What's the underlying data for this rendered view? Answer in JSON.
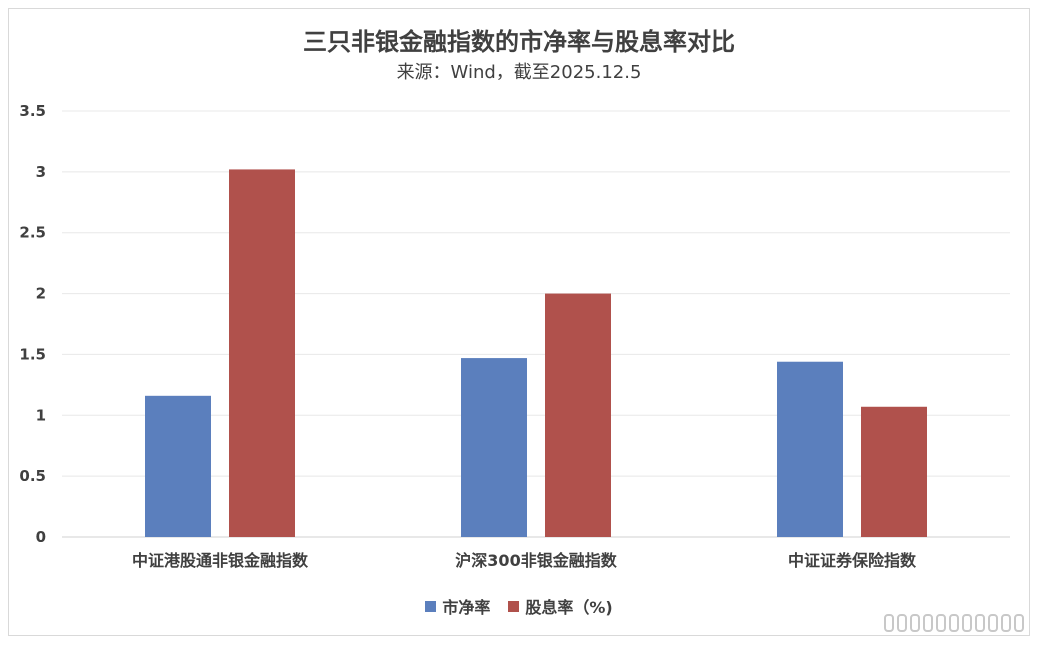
{
  "chart_data": {
    "type": "bar",
    "title": "三只非银金融指数的市净率与股息率对比",
    "subtitle": "来源：Wind，截至2025.12.5",
    "categories": [
      "中证港股通非银金融指数",
      "沪深300非银金融指数",
      "中证证券保险指数"
    ],
    "series": [
      {
        "name": "市净率",
        "color": "#5b7fbd",
        "values": [
          1.16,
          1.47,
          1.44
        ]
      },
      {
        "name": "股息率（%)",
        "color": "#b0514c",
        "values": [
          3.02,
          2.0,
          1.07
        ]
      }
    ],
    "y_ticks": [
      "0",
      "0.5",
      "1",
      "1.5",
      "2",
      "2.5",
      "3",
      "3.5"
    ],
    "ylim": [
      0,
      3.5
    ],
    "grid": true,
    "legend_position": "bottom"
  }
}
